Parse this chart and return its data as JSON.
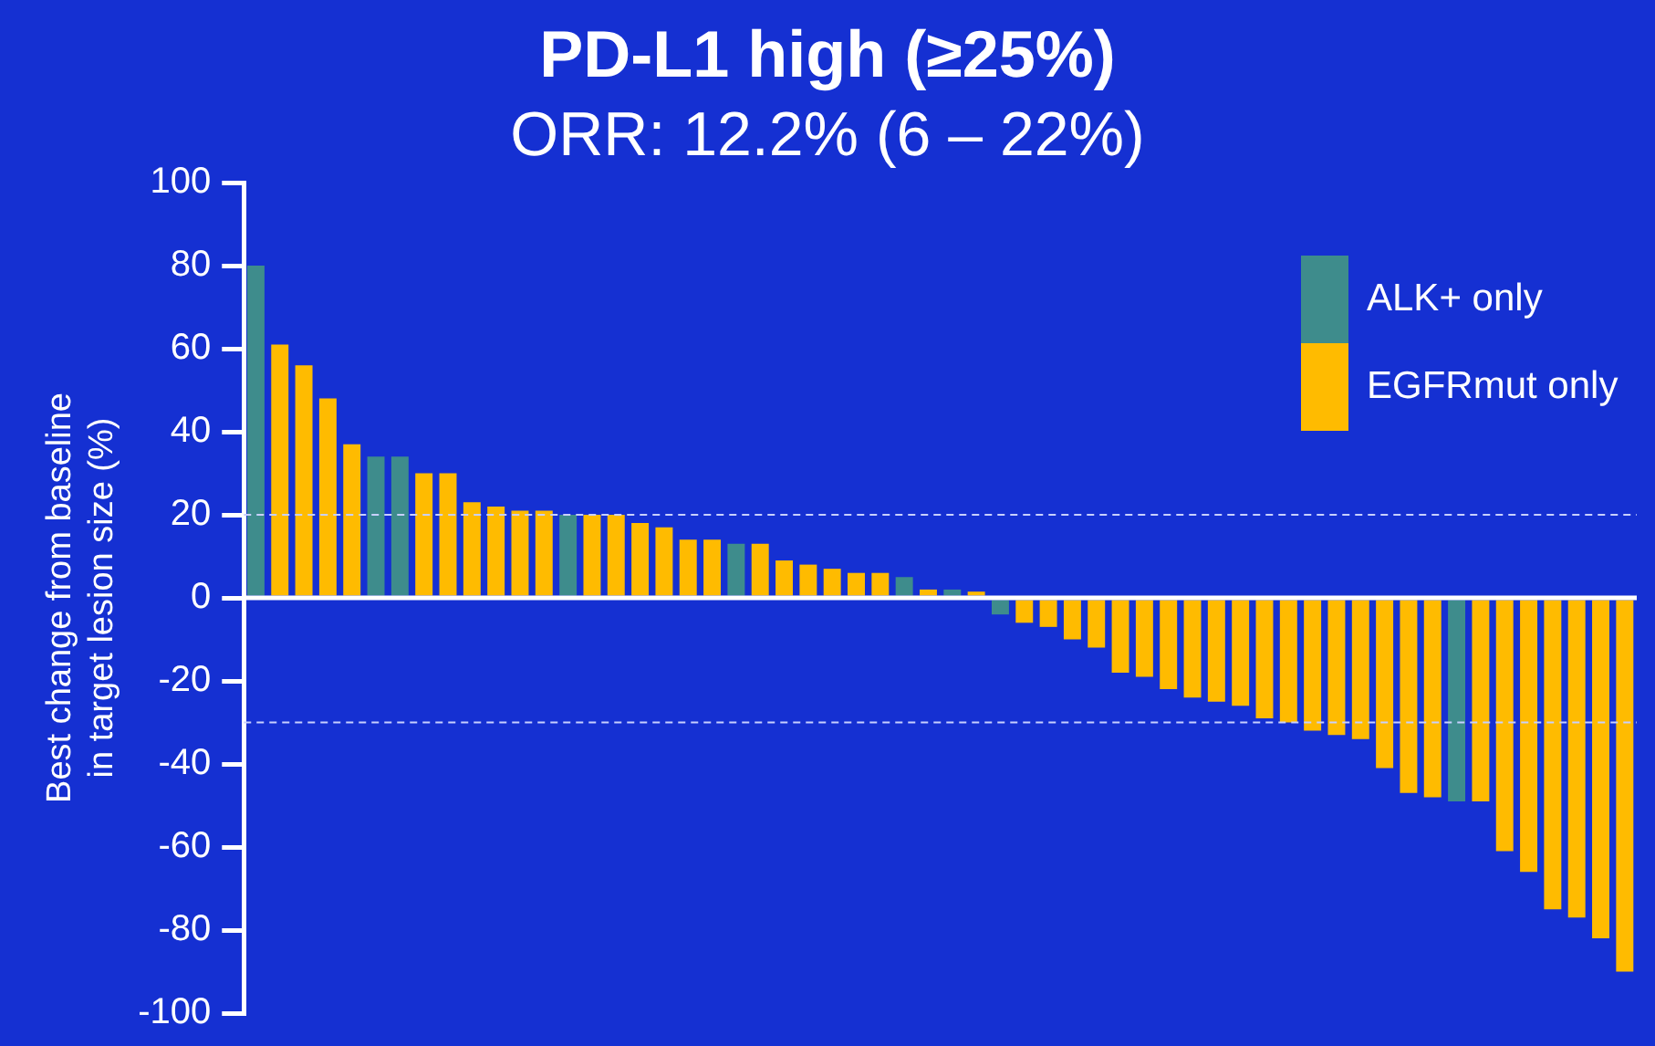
{
  "chart_data": {
    "type": "bar",
    "title": "PD-L1 high (≥25%)",
    "subtitle": "ORR: 12.2% (6 – 22%)",
    "ylabel": "Best change from baseline in target lesion size (%)",
    "categories": [
      null,
      null,
      null,
      null,
      null,
      null,
      null,
      null,
      null,
      null,
      null,
      null,
      null,
      null,
      null,
      null,
      null,
      null,
      null,
      null,
      null,
      null,
      null,
      null,
      null,
      null,
      null,
      null,
      null,
      null,
      null,
      null,
      null,
      null,
      null,
      null,
      null,
      null,
      null,
      null,
      null,
      null,
      null,
      null,
      null,
      null,
      null,
      null,
      null,
      null,
      null,
      null,
      null,
      null,
      null,
      null,
      null,
      null
    ],
    "series": [
      {
        "name": "ALK+ only",
        "color": "#3e8c8c",
        "values": [
          80,
          null,
          null,
          null,
          null,
          34,
          34,
          null,
          null,
          null,
          null,
          null,
          null,
          20,
          null,
          null,
          null,
          null,
          null,
          null,
          13,
          null,
          null,
          null,
          null,
          null,
          null,
          5,
          null,
          2,
          null,
          -4,
          null,
          null,
          null,
          null,
          null,
          null,
          null,
          null,
          null,
          null,
          null,
          null,
          null,
          null,
          null,
          null,
          null,
          null,
          -49,
          null,
          null,
          null,
          null,
          null,
          null,
          null
        ]
      },
      {
        "name": "EGFRmut only",
        "color": "#ffbb00",
        "values": [
          null,
          61,
          56,
          48,
          37,
          null,
          null,
          30,
          30,
          23,
          22,
          21,
          21,
          null,
          20,
          20,
          18,
          17,
          14,
          14,
          null,
          13,
          9,
          8,
          7,
          6,
          6,
          null,
          2,
          null,
          1.5,
          null,
          -6,
          -7,
          -10,
          -12,
          -18,
          -19,
          -22,
          -24,
          -25,
          -26,
          -29,
          -30,
          -32,
          -33,
          -34,
          -41,
          -47,
          -48,
          null,
          -49,
          -61,
          -66,
          -75,
          -77,
          -82,
          -90
        ]
      }
    ],
    "ylim": [
      -100,
      100
    ],
    "yticks": [
      -100,
      -80,
      -60,
      -40,
      -20,
      0,
      20,
      40,
      60,
      80,
      100
    ],
    "grid": false,
    "legend": "top right",
    "ref_lines": [
      {
        "axis": "y",
        "value": 20,
        "color": "#c8d0ff",
        "line_style": "dashed"
      },
      {
        "axis": "y",
        "value": -30,
        "color": "#c8d0ff",
        "line_style": "dashed"
      }
    ]
  }
}
